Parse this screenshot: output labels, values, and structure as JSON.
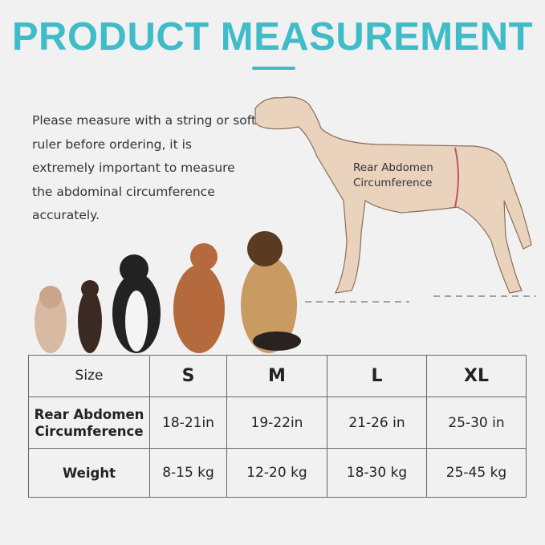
{
  "title": "PRODUCT MEASUREMENT",
  "description": "Please measure with a string or soft ruler before ordering, it is extremely important to measure the abdominal circumference accurately.",
  "dog_label_line1": "Rear Abdomen",
  "dog_label_line2": "Circumference",
  "colors": {
    "accent": "#3fbcc8",
    "dog_fill": "#ead3bd",
    "measure_mark": "#c0506a"
  },
  "table": {
    "header": [
      "Size",
      "S",
      "M",
      "L",
      "XL"
    ],
    "rows": [
      {
        "label_line1": "Rear Abdomen",
        "label_line2": "Circumference",
        "values": [
          "18-21in",
          "19-22in",
          "21-26 in",
          "25-30 in"
        ]
      },
      {
        "label_line1": "Weight",
        "label_line2": "",
        "values": [
          "8-15 kg",
          "12-20 kg",
          "18-30 kg",
          "25-45 kg"
        ]
      }
    ]
  }
}
